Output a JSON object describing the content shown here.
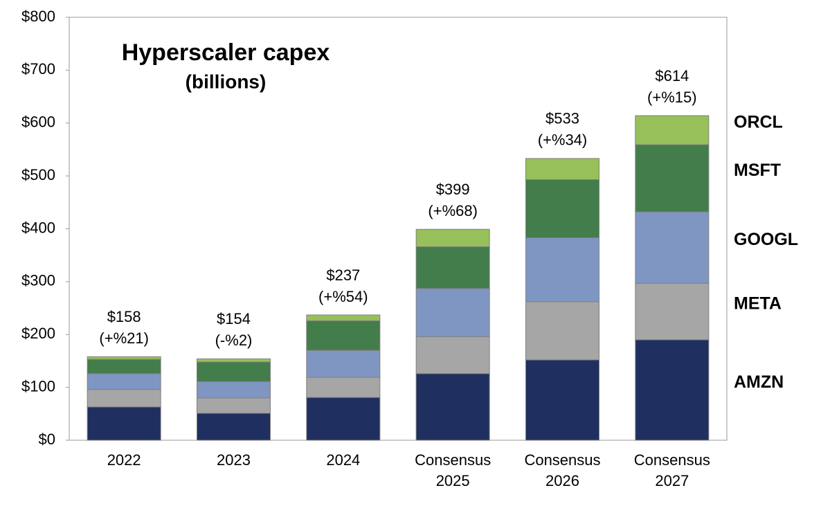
{
  "chart_data": {
    "type": "stacked-bar",
    "title": "Hyperscaler capex",
    "subtitle": "(billions)",
    "categories": [
      [
        "2022"
      ],
      [
        "2023"
      ],
      [
        "2024"
      ],
      [
        "Consensus",
        "2025"
      ],
      [
        "Consensus",
        "2026"
      ],
      [
        "Consensus",
        "2027"
      ]
    ],
    "series": [
      {
        "name": "AMZN",
        "color": "#1f3060",
        "values": [
          63,
          51,
          81,
          126,
          152,
          190
        ]
      },
      {
        "name": "META",
        "color": "#a6a6a6",
        "values": [
          33,
          29,
          38,
          70,
          110,
          107
        ]
      },
      {
        "name": "GOOGL",
        "color": "#7f96c3",
        "values": [
          30,
          31,
          51,
          91,
          121,
          135
        ]
      },
      {
        "name": "MSFT",
        "color": "#437d4b",
        "values": [
          27,
          37,
          56,
          79,
          110,
          127
        ]
      },
      {
        "name": "ORCL",
        "color": "#97c05a",
        "values": [
          5,
          6,
          11,
          33,
          40,
          55
        ]
      }
    ],
    "bar_labels": [
      [
        "$158",
        "(+%21)"
      ],
      [
        "$154",
        "(-%2)"
      ],
      [
        "$237",
        "(+%54)"
      ],
      [
        "$399",
        "(+%68)"
      ],
      [
        "$533",
        "(+%34)"
      ],
      [
        "$614",
        "(+%15)"
      ]
    ],
    "ylim": [
      0,
      800
    ],
    "yticks": [
      {
        "value": 0,
        "label": "$0"
      },
      {
        "value": 100,
        "label": "$100"
      },
      {
        "value": 200,
        "label": "$200"
      },
      {
        "value": 300,
        "label": "$300"
      },
      {
        "value": 400,
        "label": "$400"
      },
      {
        "value": 500,
        "label": "$500"
      },
      {
        "value": 600,
        "label": "$600"
      },
      {
        "value": 700,
        "label": "$700"
      },
      {
        "value": 800,
        "label": "$800"
      }
    ],
    "legend": "right"
  }
}
